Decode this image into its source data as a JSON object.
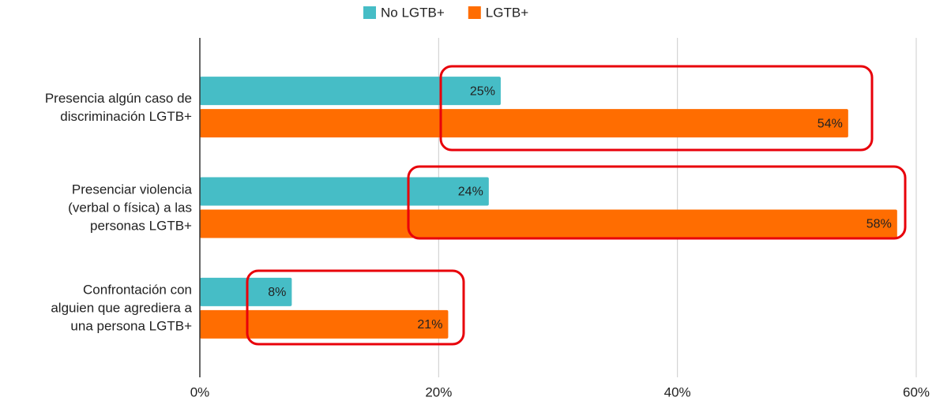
{
  "chart_data": {
    "type": "bar",
    "orientation": "horizontal",
    "categories": [
      "Presencia algún caso de\ndiscriminación LGTB+",
      "Presenciar violencia\n(verbal o física) a las\npersonas LGTB+",
      "Confrontación con\nalguien que agrediera a\nuna persona LGTB+"
    ],
    "series": [
      {
        "name": "No LGTB+",
        "color": "#46bdc6",
        "values": [
          25.2,
          24.2,
          7.7
        ],
        "value_labels": [
          "25%",
          "24%",
          "8%"
        ]
      },
      {
        "name": "LGTB+",
        "color": "#ff6d01",
        "values": [
          54.3,
          58.4,
          20.8
        ],
        "value_labels": [
          "54%",
          "58%",
          "21%"
        ]
      }
    ],
    "xlim": [
      0,
      60
    ],
    "xticks": [
      {
        "value": 0,
        "label": "0%"
      },
      {
        "value": 20,
        "label": "20%"
      },
      {
        "value": 40,
        "label": "40%"
      },
      {
        "value": 60,
        "label": "60%"
      }
    ],
    "grid": true,
    "legend": "top"
  }
}
